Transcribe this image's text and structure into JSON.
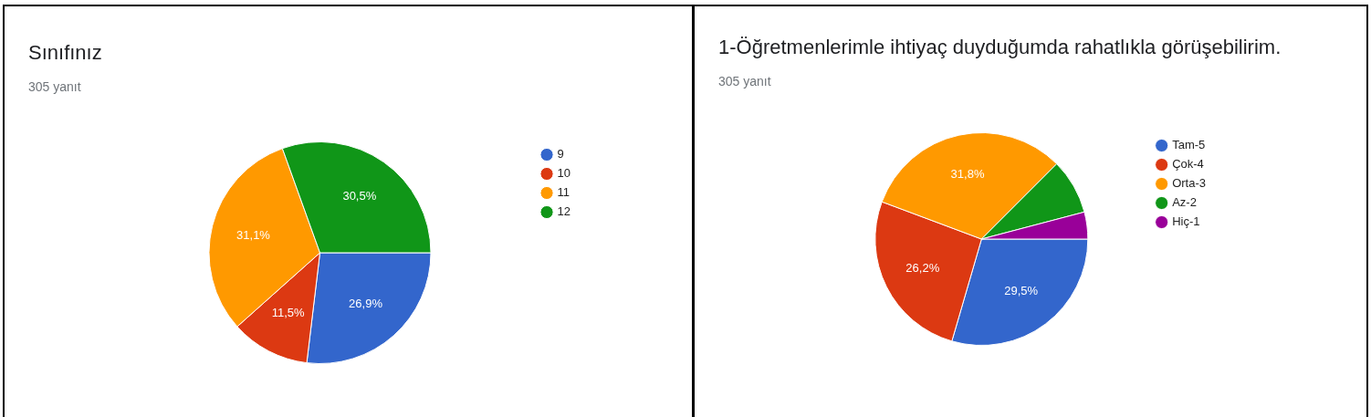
{
  "chart_data": [
    {
      "type": "pie",
      "title": "Sınıfınız",
      "subtitle": "305 yanıt",
      "categories": [
        "9",
        "10",
        "11",
        "12"
      ],
      "values": [
        26.9,
        11.5,
        31.1,
        30.5
      ],
      "colors": [
        "#3366cc",
        "#dc3912",
        "#ff9900",
        "#109618"
      ],
      "value_labels": [
        "26,9%",
        "11,5%",
        "31,1%",
        "30,5%"
      ],
      "legend": "right"
    },
    {
      "type": "pie",
      "title": "1-Öğretmenlerimle ihtiyaç duyduğumda rahatlıkla görüşebilirim.",
      "subtitle": "305 yanıt",
      "categories": [
        "Tam-5",
        "Çok-4",
        "Orta-3",
        "Az-2",
        "Hiç-1"
      ],
      "values": [
        29.5,
        26.2,
        31.8,
        8.4,
        4.1
      ],
      "colors": [
        "#3366cc",
        "#dc3912",
        "#ff9900",
        "#109618",
        "#990099"
      ],
      "value_labels": [
        "29,5%",
        "26,2%",
        "31,8%",
        null,
        null
      ],
      "legend": "right"
    }
  ]
}
